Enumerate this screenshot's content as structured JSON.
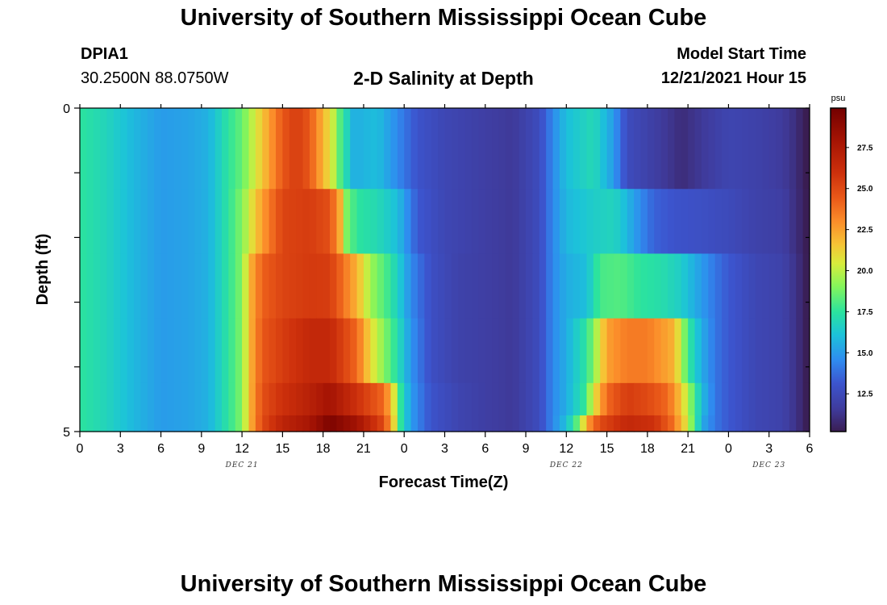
{
  "header": {
    "title": "University of Southern Mississippi Ocean Cube",
    "station_id": "DPIA1",
    "station_coords": "30.2500N  88.0750W",
    "plot_title": "2-D Salinity at Depth",
    "model_label": "Model Start Time",
    "model_time": "12/21/2021 Hour 15"
  },
  "footer": {
    "title": "University of Southern Mississippi Ocean Cube"
  },
  "chart_data": {
    "type": "heatmap",
    "title": "2-D Salinity at Depth",
    "xlabel": "Forecast Time(Z)",
    "ylabel": "Depth (ft)",
    "x_ticks": [
      "0",
      "3",
      "6",
      "9",
      "12",
      "15",
      "18",
      "21",
      "0",
      "3",
      "6",
      "9",
      "12",
      "15",
      "18",
      "21",
      "0",
      "3",
      "6"
    ],
    "y_ticks": [
      "0",
      "5"
    ],
    "date_labels": [
      {
        "label": "DEC 21",
        "hour": 12
      },
      {
        "label": "DEC 22",
        "hour": 36
      },
      {
        "label": "DEC 23",
        "hour": 51
      }
    ],
    "x_range_hours": [
      0,
      54
    ],
    "y_range_ft": [
      0,
      5
    ],
    "depth_layers_ft": [
      0.25,
      1.25,
      2.25,
      3.25,
      4.25,
      4.75
    ],
    "profiles": [
      {
        "depth_ft": 0.25,
        "keys": [
          [
            0,
            17.5
          ],
          [
            2,
            16.8
          ],
          [
            4,
            15.8
          ],
          [
            6,
            15.0
          ],
          [
            8,
            15.2
          ],
          [
            9.5,
            15.6
          ],
          [
            11,
            17.5
          ],
          [
            12,
            18.5
          ],
          [
            13,
            20.5
          ],
          [
            14,
            22.5
          ],
          [
            15,
            24.5
          ],
          [
            16,
            25.5
          ],
          [
            17,
            24.5
          ],
          [
            18,
            22.0
          ],
          [
            18.8,
            20.0
          ],
          [
            19.3,
            18.0
          ],
          [
            20.3,
            15.5
          ],
          [
            22,
            16.0
          ],
          [
            23.5,
            14.5
          ],
          [
            25,
            13.0
          ],
          [
            27,
            12.3
          ],
          [
            30,
            11.8
          ],
          [
            32,
            11.5
          ],
          [
            34,
            12.6
          ],
          [
            35,
            14.5
          ],
          [
            36,
            16.0
          ],
          [
            38,
            17.0
          ],
          [
            39.5,
            15.0
          ],
          [
            40.5,
            12.6
          ],
          [
            42,
            12.0
          ],
          [
            44,
            11.2
          ],
          [
            44.5,
            10.9
          ],
          [
            46,
            11.5
          ],
          [
            48,
            12.2
          ],
          [
            50,
            12.0
          ],
          [
            52,
            11.6
          ],
          [
            53,
            11.0
          ],
          [
            53.8,
            10.0
          ],
          [
            54,
            9.0
          ]
        ]
      },
      {
        "depth_ft": 1.25,
        "keys": [
          [
            0,
            17.5
          ],
          [
            2,
            16.8
          ],
          [
            4,
            15.8
          ],
          [
            6,
            15.0
          ],
          [
            8,
            15.2
          ],
          [
            9.5,
            15.6
          ],
          [
            11,
            17.5
          ],
          [
            12,
            19.0
          ],
          [
            13,
            21.5
          ],
          [
            14,
            23.5
          ],
          [
            15,
            25.2
          ],
          [
            17,
            25.5
          ],
          [
            18.5,
            24.8
          ],
          [
            19.3,
            22.0
          ],
          [
            19.7,
            19.0
          ],
          [
            20.5,
            17.5
          ],
          [
            22,
            17.0
          ],
          [
            23.5,
            16.0
          ],
          [
            25,
            13.2
          ],
          [
            27,
            12.3
          ],
          [
            30,
            11.8
          ],
          [
            32,
            11.5
          ],
          [
            34,
            12.6
          ],
          [
            35,
            14.5
          ],
          [
            36,
            15.8
          ],
          [
            38,
            16.5
          ],
          [
            39.5,
            16.8
          ],
          [
            40.3,
            16.0
          ],
          [
            41.5,
            14.5
          ],
          [
            42.5,
            13.5
          ],
          [
            44,
            13.0
          ],
          [
            46,
            12.8
          ],
          [
            48,
            12.5
          ],
          [
            50,
            12.0
          ],
          [
            52,
            11.8
          ],
          [
            53,
            11.0
          ],
          [
            54,
            10.0
          ]
        ]
      },
      {
        "depth_ft": 2.25,
        "keys": [
          [
            0,
            17.5
          ],
          [
            2,
            16.8
          ],
          [
            4,
            15.8
          ],
          [
            6,
            15.0
          ],
          [
            8,
            15.2
          ],
          [
            9.5,
            15.6
          ],
          [
            11,
            17.5
          ],
          [
            12,
            19.0
          ],
          [
            12.6,
            22.0
          ],
          [
            13.5,
            24.2
          ],
          [
            15,
            25.2
          ],
          [
            17,
            25.6
          ],
          [
            18.5,
            25.5
          ],
          [
            20.5,
            22.0
          ],
          [
            21.5,
            19.5
          ],
          [
            22.8,
            17.8
          ],
          [
            23.6,
            16.5
          ],
          [
            24.5,
            14.5
          ],
          [
            26,
            12.8
          ],
          [
            28,
            12.0
          ],
          [
            30,
            11.8
          ],
          [
            32,
            11.5
          ],
          [
            34,
            12.6
          ],
          [
            35,
            14.5
          ],
          [
            36,
            15.5
          ],
          [
            37.5,
            16.0
          ],
          [
            38.5,
            18.0
          ],
          [
            40,
            18.2
          ],
          [
            41.5,
            17.5
          ],
          [
            43,
            17.2
          ],
          [
            44.5,
            16.5
          ],
          [
            46,
            15.0
          ],
          [
            47,
            14.0
          ],
          [
            48,
            13.2
          ],
          [
            50,
            12.3
          ],
          [
            52,
            12.0
          ],
          [
            53,
            11.2
          ],
          [
            54,
            10.0
          ]
        ]
      },
      {
        "depth_ft": 3.25,
        "keys": [
          [
            0,
            17.5
          ],
          [
            2,
            16.8
          ],
          [
            4,
            15.8
          ],
          [
            6,
            15.0
          ],
          [
            8,
            15.2
          ],
          [
            9.5,
            15.6
          ],
          [
            11,
            17.5
          ],
          [
            12,
            19.0
          ],
          [
            12.6,
            22.0
          ],
          [
            13.5,
            24.5
          ],
          [
            15,
            25.5
          ],
          [
            17,
            26.5
          ],
          [
            18.5,
            26.5
          ],
          [
            20.5,
            24.0
          ],
          [
            21.5,
            21.0
          ],
          [
            22.8,
            18.5
          ],
          [
            23.6,
            17.0
          ],
          [
            24.5,
            14.8
          ],
          [
            26,
            12.8
          ],
          [
            28,
            12.0
          ],
          [
            30,
            11.8
          ],
          [
            32,
            11.5
          ],
          [
            34,
            12.6
          ],
          [
            35,
            14.5
          ],
          [
            36,
            15.5
          ],
          [
            37.5,
            17.5
          ],
          [
            38.3,
            20.0
          ],
          [
            39,
            22.5
          ],
          [
            40.5,
            23.5
          ],
          [
            42,
            23.5
          ],
          [
            44,
            22.0
          ],
          [
            44.7,
            19.0
          ],
          [
            45.3,
            17.0
          ],
          [
            46,
            15.5
          ],
          [
            47,
            14.0
          ],
          [
            48,
            13.2
          ],
          [
            50,
            12.3
          ],
          [
            52,
            12.0
          ],
          [
            53,
            11.2
          ],
          [
            54,
            10.0
          ]
        ]
      },
      {
        "depth_ft": 4.25,
        "keys": [
          [
            0,
            17.5
          ],
          [
            2,
            16.8
          ],
          [
            4,
            15.8
          ],
          [
            6,
            15.0
          ],
          [
            8,
            15.2
          ],
          [
            9.5,
            15.6
          ],
          [
            11,
            17.5
          ],
          [
            12,
            19.0
          ],
          [
            12.6,
            22.0
          ],
          [
            13.5,
            24.8
          ],
          [
            15,
            26.0
          ],
          [
            17,
            27.0
          ],
          [
            18.5,
            28.0
          ],
          [
            20.5,
            26.0
          ],
          [
            22.5,
            24.0
          ],
          [
            23.2,
            21.0
          ],
          [
            23.6,
            18.0
          ],
          [
            24.5,
            15.0
          ],
          [
            26,
            13.0
          ],
          [
            28,
            12.2
          ],
          [
            30,
            11.8
          ],
          [
            32,
            11.5
          ],
          [
            34,
            12.6
          ],
          [
            35,
            14.5
          ],
          [
            36,
            15.5
          ],
          [
            37.3,
            17.5
          ],
          [
            38,
            20.5
          ],
          [
            39,
            24.0
          ],
          [
            40.5,
            25.5
          ],
          [
            42,
            25.0
          ],
          [
            43.5,
            24.0
          ],
          [
            44.5,
            21.5
          ],
          [
            45.2,
            19.0
          ],
          [
            46,
            16.0
          ],
          [
            47,
            14.0
          ],
          [
            48,
            13.2
          ],
          [
            50,
            12.3
          ],
          [
            52,
            12.0
          ],
          [
            53,
            11.2
          ],
          [
            54,
            10.0
          ]
        ]
      },
      {
        "depth_ft": 4.75,
        "keys": [
          [
            0,
            17.5
          ],
          [
            2,
            16.8
          ],
          [
            4,
            15.8
          ],
          [
            6,
            15.0
          ],
          [
            8,
            15.2
          ],
          [
            9.5,
            15.6
          ],
          [
            11,
            17.5
          ],
          [
            12,
            19.0
          ],
          [
            12.6,
            22.0
          ],
          [
            13.5,
            25.0
          ],
          [
            15,
            26.8
          ],
          [
            17,
            27.8
          ],
          [
            18.5,
            29.5
          ],
          [
            20.5,
            28.0
          ],
          [
            22.5,
            25.0
          ],
          [
            23.2,
            21.5
          ],
          [
            23.6,
            18.0
          ],
          [
            24.5,
            15.0
          ],
          [
            26,
            13.0
          ],
          [
            28,
            12.2
          ],
          [
            30,
            11.8
          ],
          [
            32,
            11.5
          ],
          [
            34,
            12.6
          ],
          [
            35,
            14.5
          ],
          [
            36,
            16.0
          ],
          [
            37,
            19.0
          ],
          [
            37.5,
            22.5
          ],
          [
            38.5,
            25.0
          ],
          [
            40.5,
            26.5
          ],
          [
            42.5,
            26.0
          ],
          [
            43.8,
            24.0
          ],
          [
            44.8,
            21.0
          ],
          [
            45.5,
            18.0
          ],
          [
            46,
            15.5
          ],
          [
            47,
            14.0
          ],
          [
            48,
            13.2
          ],
          [
            50,
            12.3
          ],
          [
            52,
            12.0
          ],
          [
            53,
            11.2
          ],
          [
            54,
            10.0
          ]
        ]
      }
    ],
    "colorbar": {
      "unit": "psu",
      "min": 10.2,
      "max": 29.9,
      "ticks": [
        "12.5",
        "15.0",
        "17.5",
        "20.0",
        "22.5",
        "25.0",
        "27.5"
      ],
      "stops": [
        [
          0.0,
          "#3a1d52"
        ],
        [
          0.07,
          "#3f3b9c"
        ],
        [
          0.15,
          "#3c55cf"
        ],
        [
          0.22,
          "#2f8bf0"
        ],
        [
          0.3,
          "#1cc3d9"
        ],
        [
          0.37,
          "#2be39e"
        ],
        [
          0.45,
          "#86f55a"
        ],
        [
          0.52,
          "#d8ec3c"
        ],
        [
          0.58,
          "#f6c235"
        ],
        [
          0.65,
          "#fb8d2a"
        ],
        [
          0.72,
          "#ea5a19"
        ],
        [
          0.8,
          "#cd300c"
        ],
        [
          0.9,
          "#a51404"
        ],
        [
          1.0,
          "#730000"
        ]
      ]
    }
  }
}
